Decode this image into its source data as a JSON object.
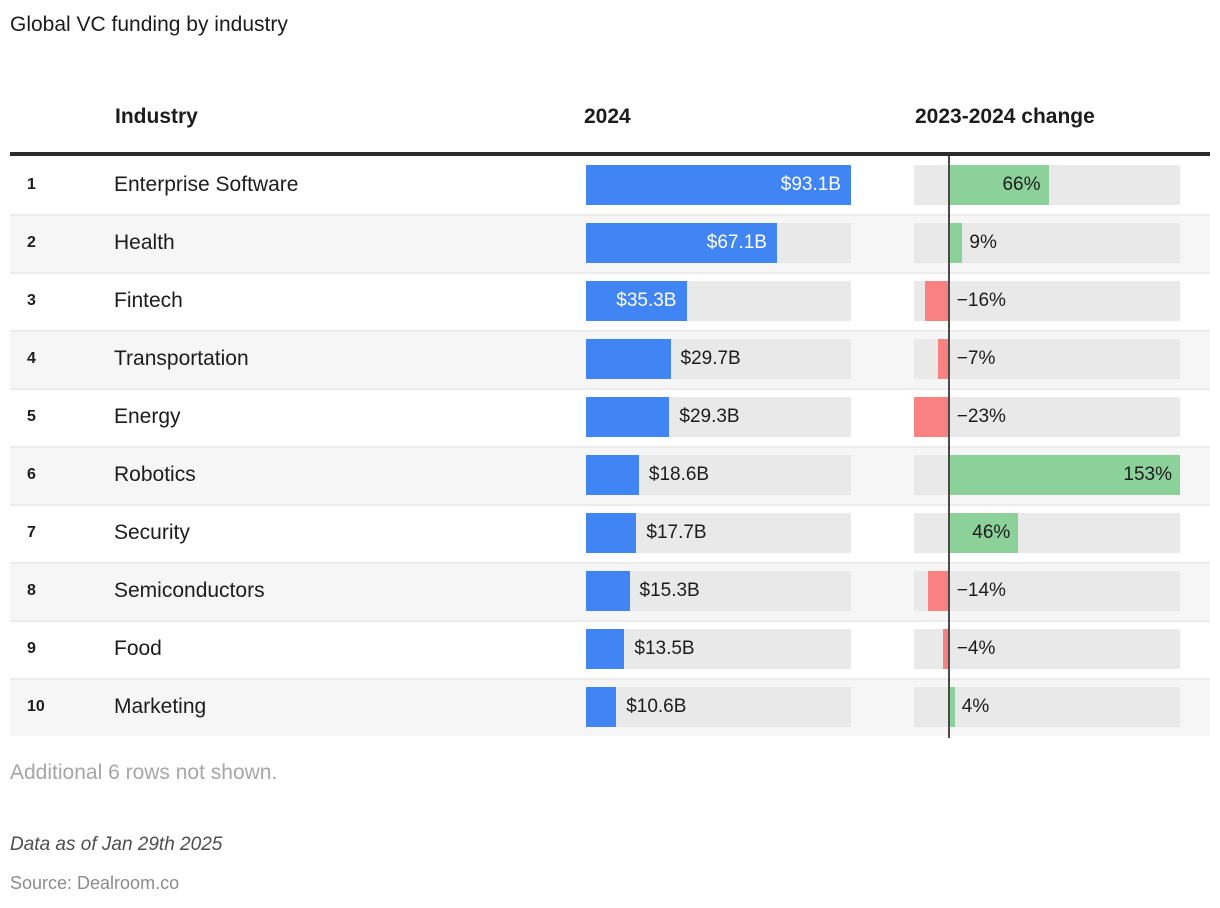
{
  "title": "Global VC funding by industry",
  "columns": {
    "industry": "Industry",
    "y2024": "2024",
    "change": "2023-2024 change"
  },
  "rows": [
    {
      "rank": "1",
      "industry": "Enterprise Software",
      "funding_label": "$93.1B",
      "funding_b": 93.1,
      "change_label": "66%",
      "change_pct": 66
    },
    {
      "rank": "2",
      "industry": "Health",
      "funding_label": "$67.1B",
      "funding_b": 67.1,
      "change_label": "9%",
      "change_pct": 9
    },
    {
      "rank": "3",
      "industry": "Fintech",
      "funding_label": "$35.3B",
      "funding_b": 35.3,
      "change_label": "−16%",
      "change_pct": -16
    },
    {
      "rank": "4",
      "industry": "Transportation",
      "funding_label": "$29.7B",
      "funding_b": 29.7,
      "change_label": "−7%",
      "change_pct": -7
    },
    {
      "rank": "5",
      "industry": "Energy",
      "funding_label": "$29.3B",
      "funding_b": 29.3,
      "change_label": "−23%",
      "change_pct": -23
    },
    {
      "rank": "6",
      "industry": "Robotics",
      "funding_label": "$18.6B",
      "funding_b": 18.6,
      "change_label": "153%",
      "change_pct": 153
    },
    {
      "rank": "7",
      "industry": "Security",
      "funding_label": "$17.7B",
      "funding_b": 17.7,
      "change_label": "46%",
      "change_pct": 46
    },
    {
      "rank": "8",
      "industry": "Semiconductors",
      "funding_label": "$15.3B",
      "funding_b": 15.3,
      "change_label": "−14%",
      "change_pct": -14
    },
    {
      "rank": "9",
      "industry": "Food",
      "funding_label": "$13.5B",
      "funding_b": 13.5,
      "change_label": "−4%",
      "change_pct": -4
    },
    {
      "rank": "10",
      "industry": "Marketing",
      "funding_label": "$10.6B",
      "funding_b": 10.6,
      "change_label": "4%",
      "change_pct": 4
    }
  ],
  "footer": {
    "note": "Additional 6 rows not shown.",
    "as_of": "Data as of Jan 29th 2025",
    "source": "Source: Dealroom.co"
  },
  "colors": {
    "blue": "#4184f3",
    "green": "#8cd19a",
    "red": "#fa8181",
    "track": "#e9e9e9",
    "zebra": "#f6f6f6",
    "sep": "#ececec",
    "rule": "#2b2b2b",
    "zero": "#4a4a4a",
    "ink": "#1c1c1c",
    "muted": "#a6a6a6",
    "asof": "#4f4f4f",
    "srcgray": "#8c8c8c"
  },
  "chart_data": {
    "type": "table",
    "title": "Global VC funding by industry",
    "columns": [
      "Industry",
      "2024",
      "2023-2024 change"
    ],
    "categories": [
      "Enterprise Software",
      "Health",
      "Fintech",
      "Transportation",
      "Energy",
      "Robotics",
      "Security",
      "Semiconductors",
      "Food",
      "Marketing"
    ],
    "series": [
      {
        "name": "2024 funding ($B)",
        "values": [
          93.1,
          67.1,
          35.3,
          29.7,
          29.3,
          18.6,
          17.7,
          15.3,
          13.5,
          10.6
        ]
      },
      {
        "name": "2023-2024 change (%)",
        "values": [
          66,
          9,
          -16,
          -7,
          -23,
          153,
          46,
          -14,
          -4,
          4
        ]
      }
    ],
    "funding_axis": {
      "min": 0,
      "max": 93.1
    },
    "change_axis": {
      "min": -23,
      "max": 153
    },
    "legend": "none",
    "grid": "off",
    "notes": [
      "Additional 6 rows not shown.",
      "Data as of Jan 29th 2025",
      "Source: Dealroom.co"
    ]
  }
}
